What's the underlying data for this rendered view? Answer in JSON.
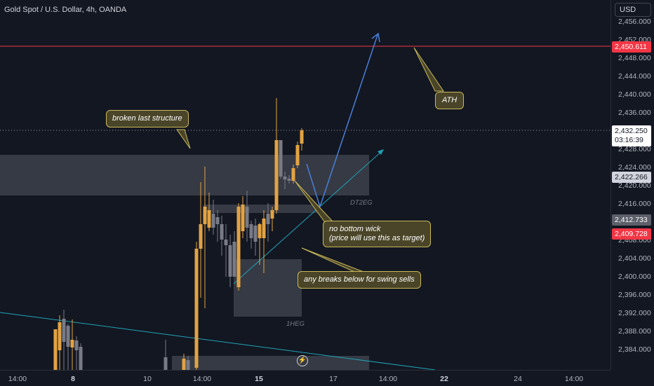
{
  "symbol": {
    "title": "Gold Spot / U.S. Dollar, 4h, OANDA"
  },
  "currency_button": {
    "label": "USD"
  },
  "price_axis": {
    "ticks": [
      "2,456.000",
      "2,452.000",
      "2,448.000",
      "2,444.000",
      "2,440.000",
      "2,436.000",
      "2,428.000",
      "2,424.000",
      "2,420.000",
      "2,416.000",
      "2,408.000",
      "2,404.000",
      "2,400.000",
      "2,396.000",
      "2,392.000",
      "2,388.000",
      "2,384.000"
    ]
  },
  "price_badges": {
    "ath": {
      "value": "2,450.611",
      "color": "#f23645"
    },
    "last": {
      "value": "2,432.250",
      "countdown": "03:16:39"
    },
    "level_a": {
      "value": "2,422.266"
    },
    "level_b": {
      "value": "2,412.733"
    },
    "level_c": {
      "value": "2,409.728",
      "color": "#f23645"
    }
  },
  "time_axis": {
    "ticks": [
      {
        "label": "14:00",
        "bold": false
      },
      {
        "label": "8",
        "bold": true
      },
      {
        "label": "10",
        "bold": false
      },
      {
        "label": "14:00",
        "bold": false
      },
      {
        "label": "15",
        "bold": true
      },
      {
        "label": "17",
        "bold": false
      },
      {
        "label": "14:00",
        "bold": false
      },
      {
        "label": "22",
        "bold": true
      },
      {
        "label": "24",
        "bold": false
      },
      {
        "label": "14:00",
        "bold": false
      }
    ]
  },
  "annotations": {
    "broken_structure": "broken last structure",
    "ath": "ATH",
    "no_wick_line1": "no bottom wick",
    "no_wick_line2": "(price will use this as target)",
    "swing_sells": "any breaks below for swing sells"
  },
  "zones": {
    "upper_label": "DT2EG",
    "lower_label": "1HEG"
  },
  "colors": {
    "bull": "#e2a343",
    "bear": "#787b86",
    "background": "#131722",
    "ath_line": "#f23645",
    "projection": "#4a7fd6",
    "trendline": "#1fa3b8"
  },
  "icons": {
    "alert": "lightning-icon"
  }
}
